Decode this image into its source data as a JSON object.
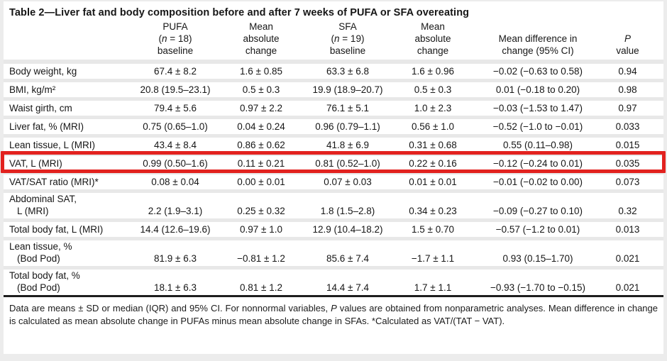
{
  "title": "Table 2—Liver fat and body composition before and after 7 weeks of PUFA or SFA overeating",
  "header": {
    "columns": [
      {
        "line1": "PUFA",
        "n_pre": "(",
        "n_italic": "n",
        "n_post": " = 18)",
        "line3": "baseline"
      },
      {
        "line1": "Mean",
        "line2": "absolute",
        "line3": "change"
      },
      {
        "line1": "SFA",
        "n_pre": "(",
        "n_italic": "n",
        "n_post": " = 19)",
        "line3": "baseline"
      },
      {
        "line1": "Mean",
        "line2": "absolute",
        "line3": "change"
      },
      {
        "line2": "Mean difference in",
        "line3": "change (95% CI)"
      },
      {
        "line2_italic": "P",
        "line3": "value"
      }
    ]
  },
  "table": {
    "rows": [
      {
        "label": "Body weight, kg",
        "cells": [
          "67.4 ± 8.2",
          "1.6 ± 0.85",
          "63.3 ± 6.8",
          "1.6 ± 0.96",
          "−0.02 (−0.63 to 0.58)",
          "0.94"
        ]
      },
      {
        "label": "BMI, kg/m²",
        "cells": [
          "20.8 (19.5–23.1)",
          "0.5 ± 0.3",
          "19.9 (18.9–20.7)",
          "0.5 ± 0.3",
          "0.01 (−0.18 to 0.20)",
          "0.98"
        ]
      },
      {
        "label": "Waist girth, cm",
        "cells": [
          "79.4 ± 5.6",
          "0.97 ± 2.2",
          "76.1 ± 5.1",
          "1.0 ± 2.3",
          "−0.03 (−1.53 to 1.47)",
          "0.97"
        ]
      },
      {
        "label": "Liver fat, % (MRI)",
        "cells": [
          "0.75 (0.65–1.0)",
          "0.04 ± 0.24",
          "0.96 (0.79–1.1)",
          "0.56 ± 1.0",
          "−0.52 (−1.0 to −0.01)",
          "0.033"
        ]
      },
      {
        "label": "Lean tissue, L (MRI)",
        "cells": [
          "43.4 ± 8.4",
          "0.86 ± 0.62",
          "41.8 ± 6.9",
          "0.31 ± 0.68",
          "0.55 (0.11–0.98)",
          "0.015"
        ]
      },
      {
        "label": "VAT, L (MRI)",
        "highlighted": true,
        "cells": [
          "0.99 (0.50–1.6)",
          "0.11 ± 0.21",
          "0.81 (0.52–1.0)",
          "0.22 ± 0.16",
          "−0.12 (−0.24 to 0.01)",
          "0.035"
        ]
      },
      {
        "label": "VAT/SAT ratio (MRI)*",
        "cells": [
          "0.08 ± 0.04",
          "0.00 ± 0.01",
          "0.07 ± 0.03",
          "0.01 ± 0.01",
          "−0.01 (−0.02 to 0.00)",
          "0.073"
        ]
      },
      {
        "label": "Abdominal SAT,",
        "label2": "L (MRI)",
        "cells": [
          "2.2 (1.9–3.1)",
          "0.25 ± 0.32",
          "1.8 (1.5–2.8)",
          "0.34 ± 0.23",
          "−0.09 (−0.27 to 0.10)",
          "0.32"
        ]
      },
      {
        "label": "Total body fat, L (MRI)",
        "cells": [
          "14.4 (12.6–19.6)",
          "0.97 ± 1.0",
          "12.9 (10.4–18.2)",
          "1.5 ± 0.70",
          "−0.57 (−1.2 to 0.01)",
          "0.013"
        ]
      },
      {
        "label": "Lean tissue, %",
        "label2": "(Bod Pod)",
        "cells": [
          "81.9 ± 6.3",
          "−0.81 ± 1.2",
          "85.6 ± 7.4",
          "−1.7 ± 1.1",
          "0.93 (0.15–1.70)",
          "0.021"
        ]
      },
      {
        "label": "Total body fat, %",
        "label2": "(Bod Pod)",
        "cells": [
          "18.1 ± 6.3",
          "0.81 ± 1.2",
          "14.4 ± 7.4",
          "1.7 ± 1.1",
          "−0.93 (−1.70 to −0.15)",
          "0.021"
        ]
      }
    ]
  },
  "footnote": {
    "part1": "Data are means ± SD or median (IQR) and 95% CI. For nonnormal variables, ",
    "italic1": "P",
    "part2": " values are obtained from nonparametric analyses. Mean difference in change is calculated as mean absolute change in PUFAs minus mean absolute change in SFAs. *Calculated as VAT/(TAT − VAT)."
  },
  "colors": {
    "highlight": "#e2221f",
    "separator": "#e8e8e8",
    "rule": "#1d1d1d"
  }
}
